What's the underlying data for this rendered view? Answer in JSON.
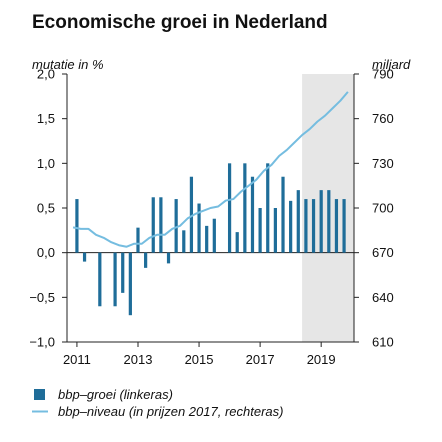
{
  "chart_data": {
    "type": "bar+line",
    "title": "Economische groei in Nederland",
    "ylabel_left": "mutatie in %",
    "ylabel_right": "miljard",
    "x_ticks": [
      "2011",
      "2013",
      "2015",
      "2017",
      "2019"
    ],
    "y_left_ticks": [
      "2,0",
      "1,5",
      "1,0",
      "0,5",
      "0,0",
      "−0,5",
      "−1,0"
    ],
    "y_right_ticks": [
      "790",
      "760",
      "730",
      "700",
      "670",
      "640",
      "610"
    ],
    "ylim_left": [
      -1.0,
      2.0
    ],
    "ylim_right": [
      610,
      790
    ],
    "xlim": [
      2010.8,
      2020.2
    ],
    "shaded_region": [
      2018.5,
      2020.2
    ],
    "quarters": [
      "2011 Q1",
      "2011 Q2",
      "2011 Q3",
      "2011 Q4",
      "2012 Q1",
      "2012 Q2",
      "2012 Q3",
      "2012 Q4",
      "2013 Q1",
      "2013 Q2",
      "2013 Q3",
      "2013 Q4",
      "2014 Q1",
      "2014 Q2",
      "2014 Q3",
      "2014 Q4",
      "2015 Q1",
      "2015 Q2",
      "2015 Q3",
      "2015 Q4",
      "2016 Q1",
      "2016 Q2",
      "2016 Q3",
      "2016 Q4",
      "2017 Q1",
      "2017 Q2",
      "2017 Q3",
      "2017 Q4",
      "2018 Q1",
      "2018 Q2",
      "2018 Q3",
      "2018 Q4",
      "2019 Q1",
      "2019 Q2",
      "2019 Q3",
      "2019 Q4"
    ],
    "series": [
      {
        "name": "bbp–groei (linkeras)",
        "type": "bar",
        "axis": "left",
        "color": "#1f6d99",
        "values": [
          0.6,
          -0.1,
          0.0,
          -0.6,
          0.0,
          -0.6,
          -0.45,
          -0.7,
          0.28,
          -0.17,
          0.62,
          0.62,
          -0.12,
          0.6,
          0.25,
          0.85,
          0.55,
          0.3,
          0.38,
          0.0,
          1.0,
          0.23,
          1.0,
          0.85,
          0.5,
          1.0,
          0.5,
          0.85,
          0.58,
          0.7,
          0.6,
          0.6,
          0.7,
          0.7,
          0.6,
          0.6
        ]
      },
      {
        "name": "bbp–niveau (in prijzen 2017, rechteras)",
        "type": "line",
        "axis": "right",
        "color": "#75bde0",
        "x": [
          2011.0,
          2011.25,
          2011.5,
          2011.75,
          2012.0,
          2012.25,
          2012.5,
          2012.75,
          2013.0,
          2013.25,
          2013.5,
          2013.75,
          2014.0,
          2014.25,
          2014.5,
          2014.75,
          2015.0,
          2015.25,
          2015.5,
          2015.75,
          2016.0,
          2016.25,
          2016.5,
          2016.75,
          2017.0,
          2017.25,
          2017.5,
          2017.75,
          2018.0,
          2018.25,
          2018.5,
          2018.75,
          2019.0,
          2019.25,
          2019.5,
          2019.75,
          2020.0
        ],
        "values": [
          687,
          686,
          686,
          682,
          680,
          677,
          675,
          674,
          676,
          676,
          680,
          682,
          682,
          686,
          688,
          693,
          696,
          698,
          700,
          701,
          705,
          706,
          711,
          715,
          719,
          725,
          729,
          735,
          739,
          744,
          749,
          753,
          758,
          762,
          767,
          772,
          778
        ]
      }
    ],
    "legend": {
      "items": [
        {
          "label": "bbp–groei (linkeras)",
          "marker": "square",
          "color": "#1f6d99"
        },
        {
          "label": "bbp–niveau (in prijzen 2017, rechteras)",
          "marker": "line",
          "color": "#75bde0"
        }
      ],
      "placement": "bottom-left"
    },
    "grid": false
  }
}
